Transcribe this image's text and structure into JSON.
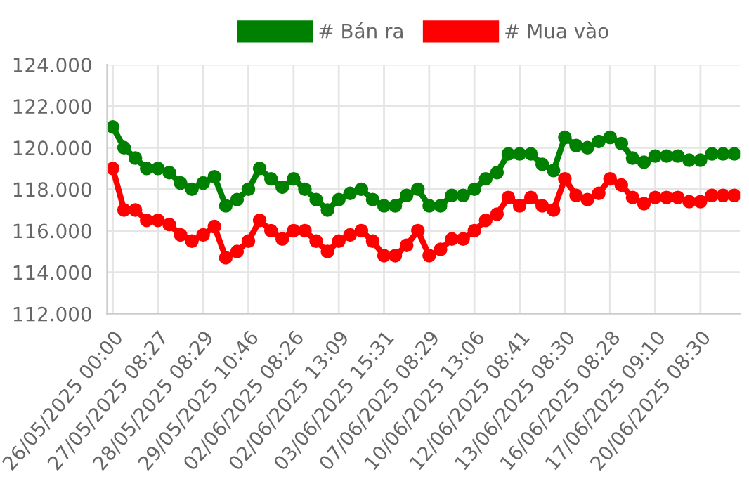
{
  "chart_data": {
    "type": "line",
    "categories": [
      "26/05/2025 00:00",
      null,
      null,
      null,
      "27/05/2025 08:27",
      null,
      null,
      null,
      "28/05/2025 08:29",
      null,
      null,
      null,
      "29/05/2025 10:46",
      null,
      null,
      null,
      "02/06/2025 08:26",
      null,
      null,
      null,
      "02/06/2025 13:09",
      null,
      null,
      null,
      "03/06/2025 15:31",
      null,
      null,
      null,
      "07/06/2025 08:29",
      null,
      null,
      null,
      "10/06/2025 13:06",
      null,
      null,
      null,
      "12/06/2025 08:41",
      null,
      null,
      null,
      "13/06/2025 08:30",
      null,
      null,
      null,
      "16/06/2025 08:28",
      null,
      null,
      null,
      "17/06/2025 09:10",
      null,
      null,
      null,
      "20/06/2025 08:30",
      null,
      null,
      null
    ],
    "series": [
      {
        "name": "# Bán ra",
        "color": "#008000",
        "values": [
          121000,
          120000,
          119500,
          119000,
          119000,
          118800,
          118300,
          118000,
          118300,
          118600,
          117200,
          117500,
          118000,
          119000,
          118500,
          118100,
          118500,
          118000,
          117500,
          117000,
          117500,
          117800,
          118000,
          117500,
          117200,
          117200,
          117700,
          118000,
          117200,
          117200,
          117700,
          117700,
          118000,
          118500,
          118800,
          119700,
          119700,
          119700,
          119200,
          118900,
          120500,
          120100,
          120000,
          120300,
          120500,
          120200,
          119500,
          119300,
          119600,
          119600,
          119600,
          119400,
          119400,
          119700,
          119700,
          119700
        ]
      },
      {
        "name": "# Mua vào",
        "color": "#ff0000",
        "values": [
          119000,
          117000,
          117000,
          116500,
          116500,
          116300,
          115800,
          115500,
          115800,
          116200,
          114700,
          115000,
          115500,
          116500,
          116000,
          115600,
          116000,
          116000,
          115500,
          115000,
          115500,
          115800,
          116000,
          115500,
          114800,
          114800,
          115300,
          116000,
          114800,
          115100,
          115600,
          115600,
          116000,
          116500,
          116800,
          117600,
          117200,
          117600,
          117200,
          117000,
          118500,
          117700,
          117500,
          117800,
          118500,
          118200,
          117600,
          117300,
          117600,
          117600,
          117600,
          117400,
          117400,
          117700,
          117700,
          117700
        ]
      }
    ],
    "ylim": [
      112000,
      124000
    ],
    "yticks": [
      {
        "value": 112000,
        "label": "112.000"
      },
      {
        "value": 114000,
        "label": "114.000"
      },
      {
        "value": 116000,
        "label": "116.000"
      },
      {
        "value": 118000,
        "label": "118.000"
      },
      {
        "value": 120000,
        "label": "120.000"
      },
      {
        "value": 122000,
        "label": "122.000"
      },
      {
        "value": 124000,
        "label": "124.000"
      }
    ],
    "grid": true,
    "legend": "top",
    "marker": "circle",
    "line_style": "solid"
  }
}
